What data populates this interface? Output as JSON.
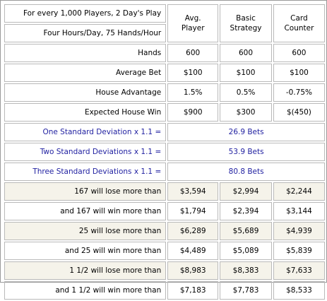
{
  "header": {
    "line1": "For every 1,000 Players, 2 Day's Play",
    "line2": "Four Hours/Day, 75 Hands/Hour",
    "col1_line1": "Avg.",
    "col1_line2": "Player",
    "col2_line1": "Basic",
    "col2_line2": "Strategy",
    "col3_line1": "Card",
    "col3_line2": "Counter"
  },
  "rows": [
    {
      "label": "Hands",
      "v1": "600",
      "v2": "600",
      "v3": "600"
    },
    {
      "label": "Average Bet",
      "v1": "$100",
      "v2": "$100",
      "v3": "$100"
    },
    {
      "label": "House Advantage",
      "v1": "1.5%",
      "v2": "0.5%",
      "v3": "-0.75%"
    },
    {
      "label": "Expected House Win",
      "v1": "$900",
      "v2": "$300",
      "v3": "$(450)"
    }
  ],
  "deviations": [
    {
      "label": "One Standard Deviation x 1.1 =",
      "value": "26.9 Bets"
    },
    {
      "label": "Two Standard Deviations x 1.1 =",
      "value": "53.9 Bets"
    },
    {
      "label": "Three Standard Deviations x 1.1 =",
      "value": "80.8 Bets"
    }
  ],
  "outcomes": [
    {
      "label": "167 will lose more than",
      "v1": "$3,594",
      "v2": "$2,994",
      "v3": "$2,244"
    },
    {
      "label": "and 167 will win more than",
      "v1": "$1,794",
      "v2": "$2,394",
      "v3": "$3,144"
    },
    {
      "label": "25 will lose more than",
      "v1": "$6,289",
      "v2": "$5,689",
      "v3": "$4,939"
    },
    {
      "label": "and 25 will win more than",
      "v1": "$4,489",
      "v2": "$5,089",
      "v3": "$5,839"
    },
    {
      "label": "1 1/2 will lose more than",
      "v1": "$8,983",
      "v2": "$8,383",
      "v3": "$7,633"
    },
    {
      "label": "and 1 1/2 will win more than",
      "v1": "$7,183",
      "v2": "$7,783",
      "v3": "$8,533"
    }
  ]
}
